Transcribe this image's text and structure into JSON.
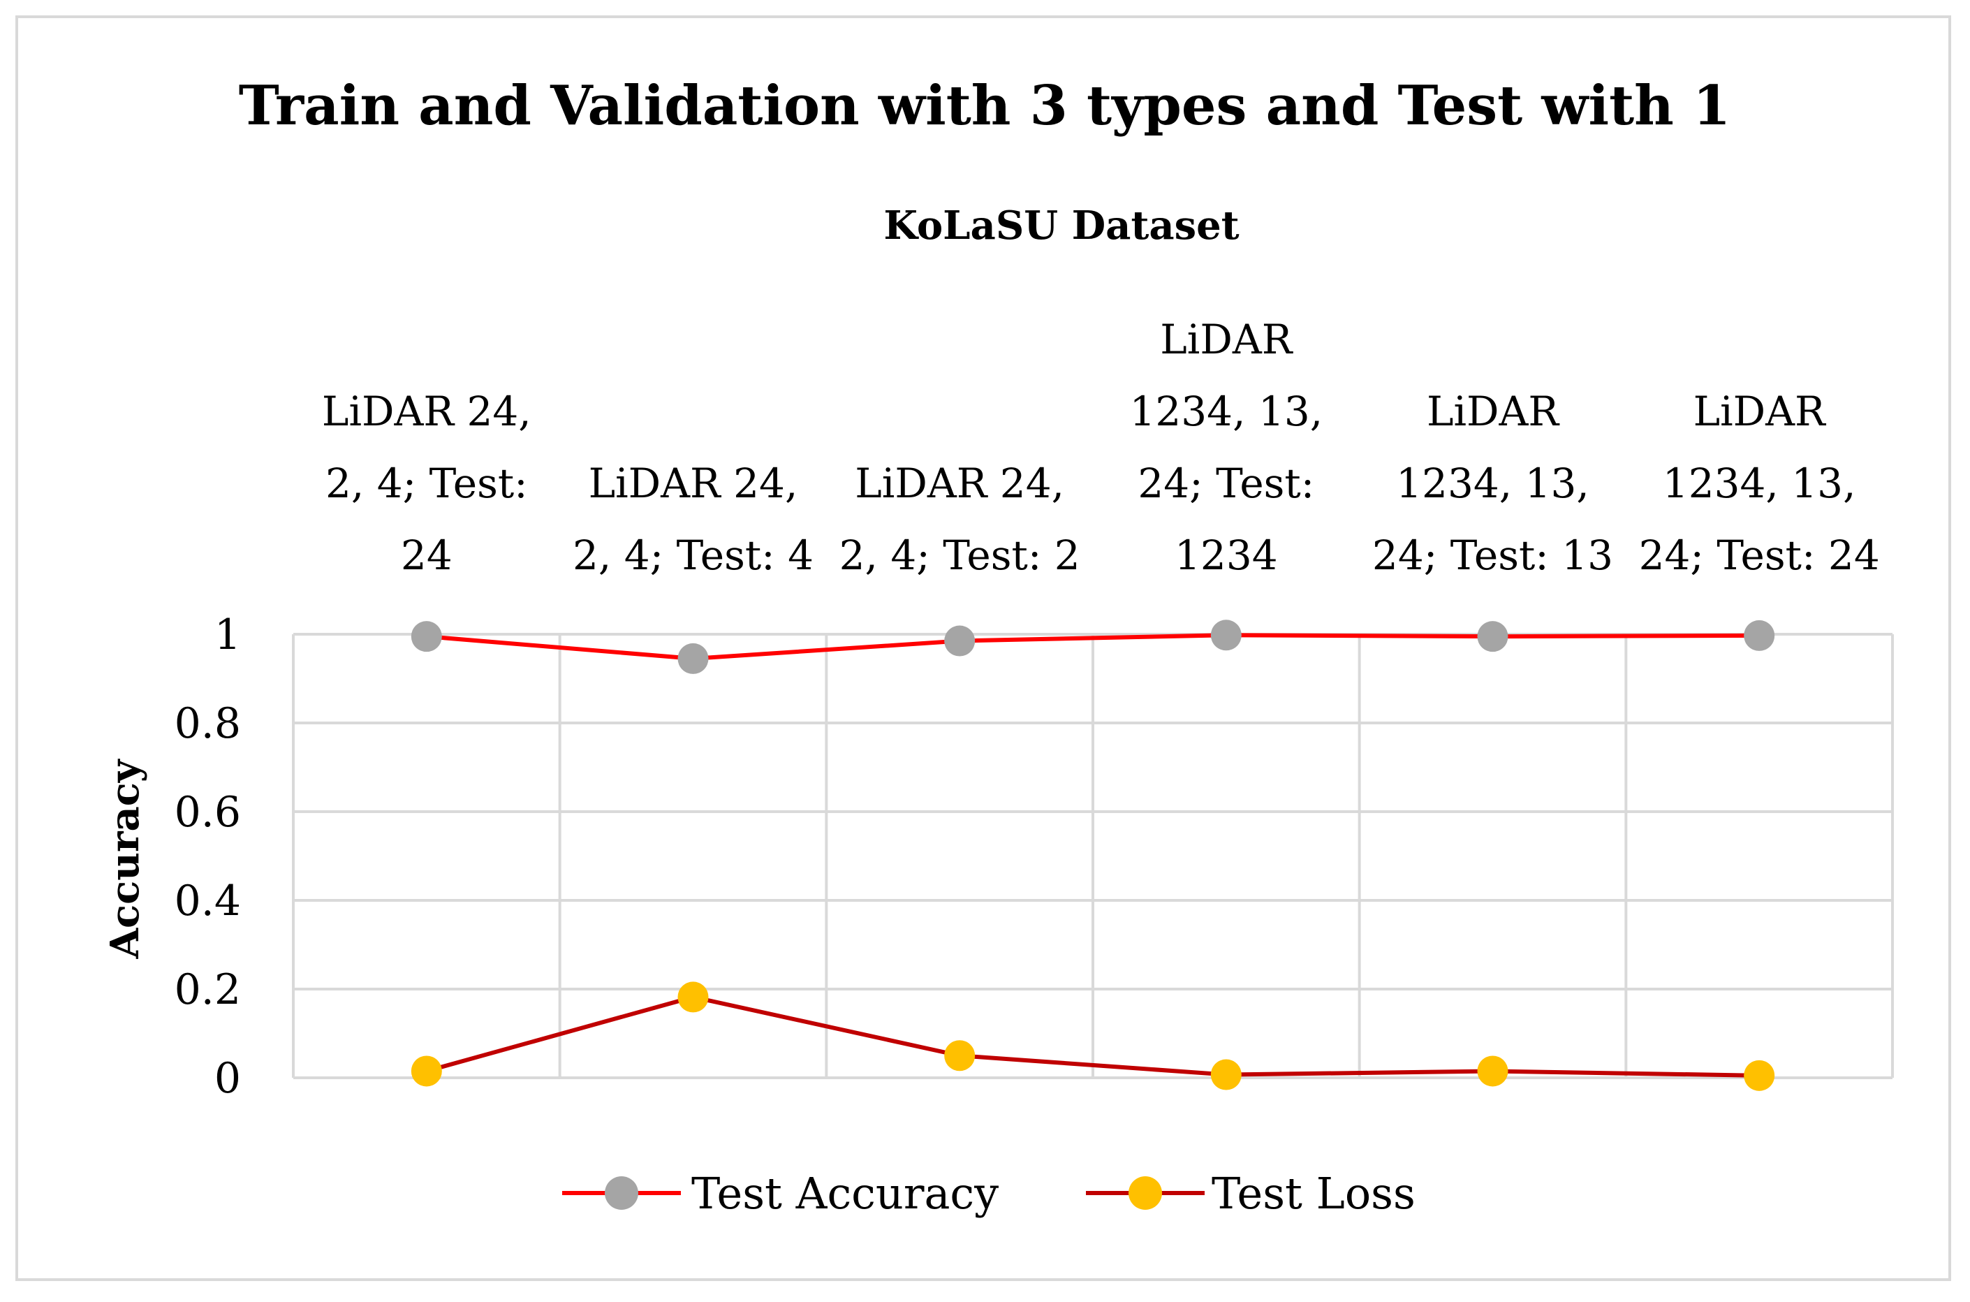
{
  "chart_data": {
    "type": "line",
    "title": "Train and Validation with 3 types and Test with 1",
    "subtitle": "KoLaSU Dataset",
    "ylabel": "Accuracy",
    "xlabel": "",
    "ylim": [
      0,
      1
    ],
    "yticks": [
      "0",
      "0.2",
      "0.4",
      "0.6",
      "0.8",
      "1"
    ],
    "categories": [
      [
        "LiDAR 24,",
        "2, 4; Test:",
        "24"
      ],
      [
        "LiDAR 24,",
        "2, 4; Test: 4"
      ],
      [
        "LiDAR 24,",
        "2, 4; Test: 2"
      ],
      [
        "LiDAR",
        "1234, 13,",
        "24; Test:",
        "1234"
      ],
      [
        "LiDAR",
        "1234, 13,",
        "24; Test: 13"
      ],
      [
        "LiDAR",
        "1234, 13,",
        "24; Test: 24"
      ]
    ],
    "series": [
      {
        "name": "Test Accuracy",
        "values": [
          0.995,
          0.945,
          0.985,
          0.998,
          0.995,
          0.997
        ],
        "line_color": "#ff0000",
        "marker_color": "#a5a5a5"
      },
      {
        "name": "Test Loss",
        "values": [
          0.015,
          0.182,
          0.05,
          0.007,
          0.015,
          0.005
        ],
        "line_color": "#c00000",
        "marker_color": "#ffc000"
      }
    ],
    "grid": true,
    "legend": "bottom"
  }
}
